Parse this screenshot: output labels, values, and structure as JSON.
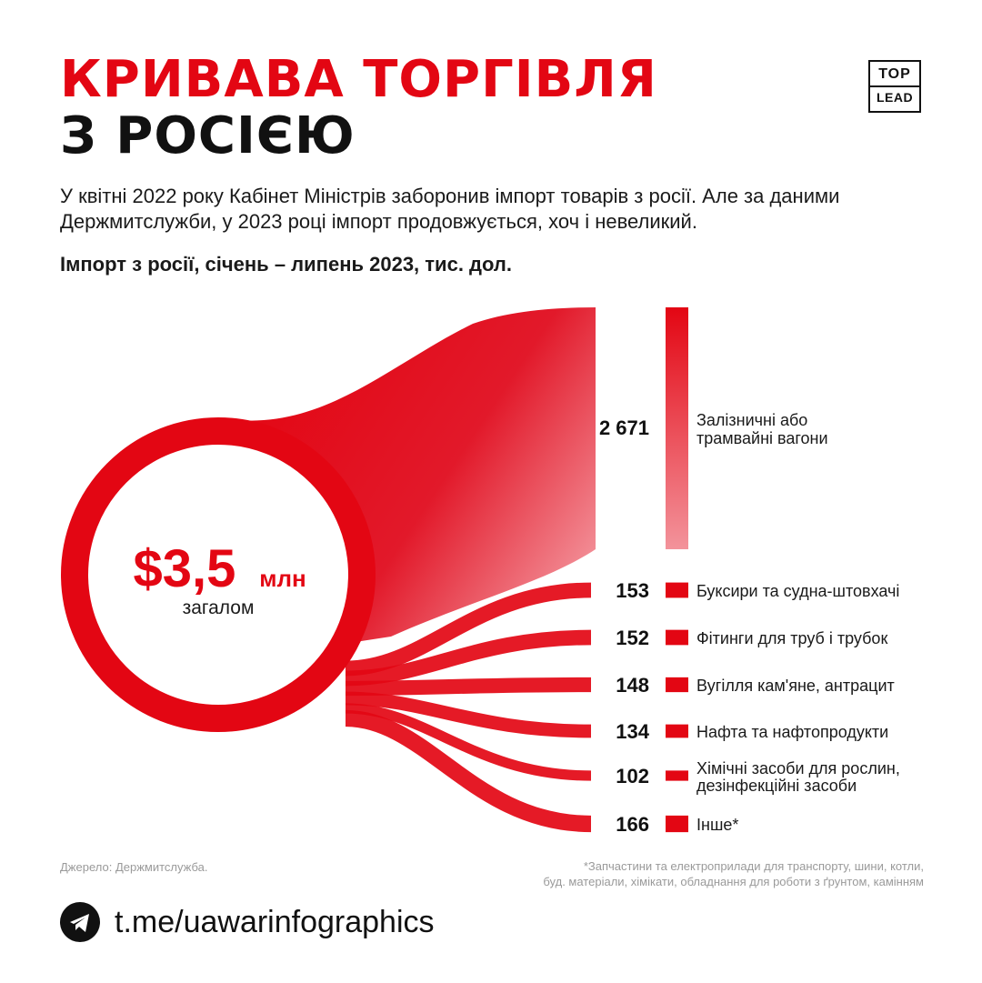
{
  "header": {
    "title_line1": "КРИВАВА ТОРГІВЛЯ",
    "title_line2": "З РОСІЄЮ",
    "logo_top": "TOP",
    "logo_bottom": "LEAD",
    "intro": "У квітні 2022 року Кабінет Міністрів заборонив імпорт товарів з росії. Але за даними Держмитслужби, у 2023 році імпорт продовжується, хоч і невеликий.",
    "subtitle": "Імпорт з росії, січень – липень 2023, тис. дол."
  },
  "chart_data": {
    "type": "sankey",
    "total_label": "$3,5",
    "total_unit": "млн",
    "total_caption": "загалом",
    "categories": [
      {
        "label_lines": [
          "Залізничні або",
          "трамвайні вагони"
        ],
        "value": 2671,
        "value_text": "2 671"
      },
      {
        "label_lines": [
          "Буксири та судна-штовхачі"
        ],
        "value": 153,
        "value_text": "153"
      },
      {
        "label_lines": [
          "Фітинги для труб і трубок"
        ],
        "value": 152,
        "value_text": "152"
      },
      {
        "label_lines": [
          "Вугілля кам'яне, антрацит"
        ],
        "value": 148,
        "value_text": "148"
      },
      {
        "label_lines": [
          "Нафта та нафтопродукти"
        ],
        "value": 134,
        "value_text": "134"
      },
      {
        "label_lines": [
          "Хімічні засоби для рослин,",
          "дезінфекційні засоби"
        ],
        "value": 102,
        "value_text": "102"
      },
      {
        "label_lines": [
          "Інше*"
        ],
        "value": 166,
        "value_text": "166"
      }
    ],
    "colors": {
      "accent": "#e30613",
      "light": "#f3939b"
    }
  },
  "footer": {
    "source": "Джерело: Держмитслужба.",
    "note_line1": "*Запчастини та електроприлади для транспорту, шини, котли,",
    "note_line2": "буд. матеріали, хімікати, обладнання для роботи з ґрунтом, камінням",
    "link": "t.me/uawarinfographics",
    "link_icon": "telegram-icon"
  }
}
